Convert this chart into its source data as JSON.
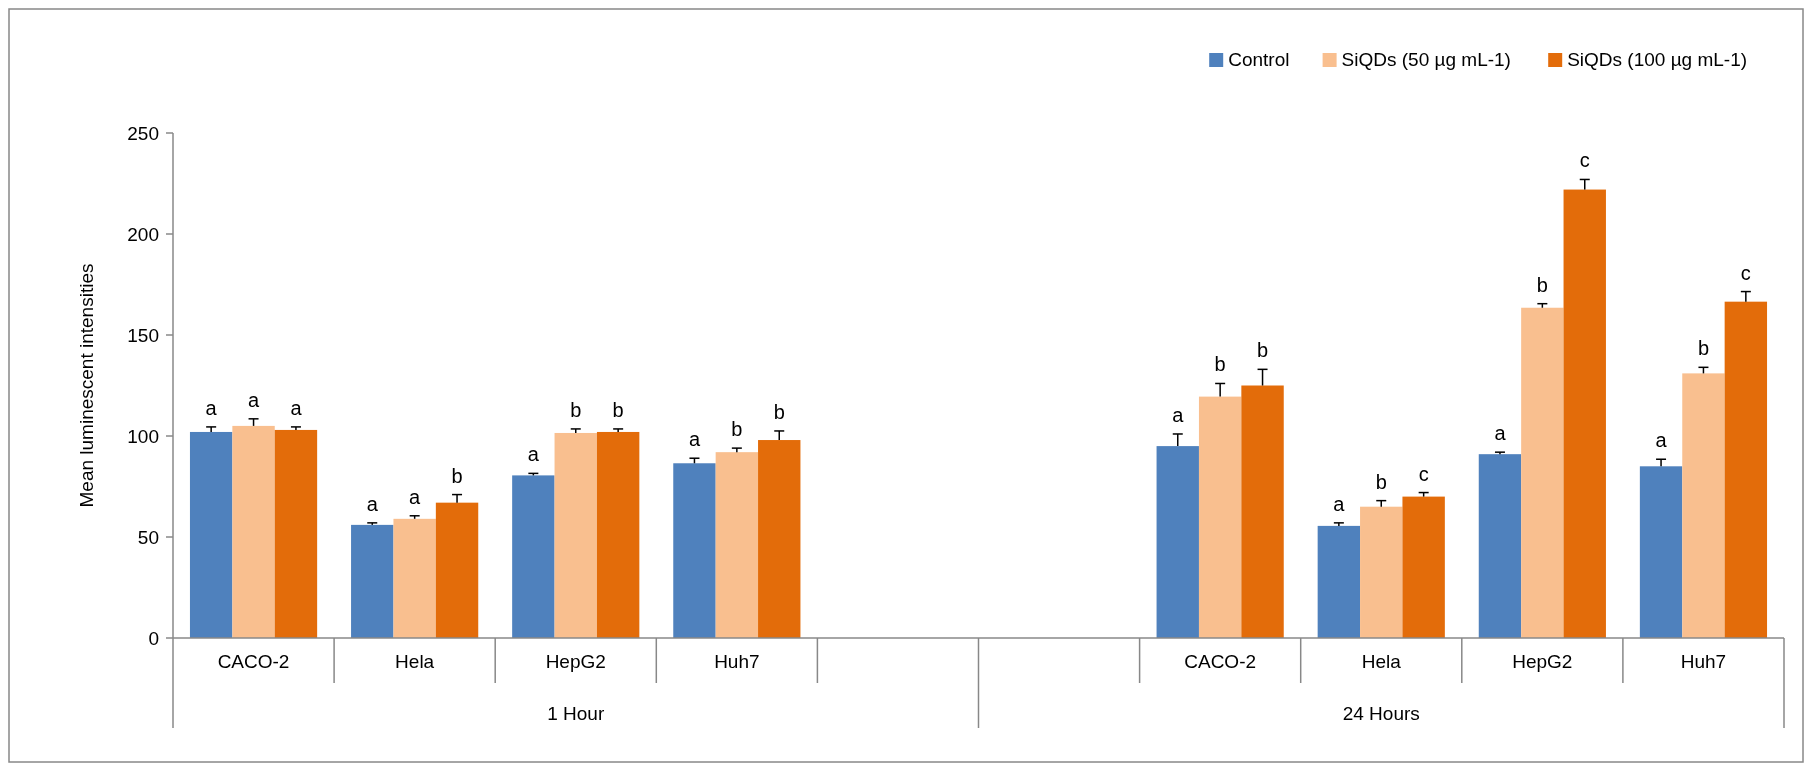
{
  "chart_data": {
    "type": "bar",
    "ylabel": "Mean luminescent intensities",
    "categories": [
      "CACO-2",
      "Hela",
      "HepG2",
      "Huh7",
      null,
      null,
      "CACO-2",
      "Hela",
      "HepG2",
      "Huh7"
    ],
    "series": [
      {
        "name": "Control",
        "color": "#4f81bd",
        "values": [
          102,
          56,
          80.5,
          86.5,
          null,
          null,
          95,
          55.5,
          91,
          85
        ],
        "errors": [
          2.5,
          1,
          1,
          2.5,
          null,
          null,
          6,
          1.5,
          1,
          3.5
        ],
        "value_labels": [
          "a",
          "a",
          "a",
          "a",
          null,
          null,
          "a",
          "a",
          "a",
          "a"
        ]
      },
      {
        "name": "SiQDs (50 µg mL-1)",
        "color": "#f9bf8f",
        "values": [
          105,
          59,
          101.5,
          92,
          null,
          null,
          119.5,
          65,
          163.5,
          131
        ],
        "errors": [
          3.5,
          1.5,
          2,
          2,
          null,
          null,
          6.5,
          3,
          2,
          3
        ],
        "value_labels": [
          "a",
          "a",
          "b",
          "b",
          null,
          null,
          "b",
          "b",
          "b",
          "b"
        ]
      },
      {
        "name": "SiQDs (100 µg mL-1)",
        "color": "#e36c0a",
        "values": [
          103,
          67,
          102,
          98,
          null,
          null,
          125,
          70,
          222,
          166.5
        ],
        "errors": [
          1.5,
          4,
          1.5,
          4.5,
          null,
          null,
          8,
          2,
          5,
          5
        ],
        "value_labels": [
          "a",
          "b",
          "b",
          "b",
          null,
          null,
          "b",
          "c",
          "c",
          "c"
        ]
      }
    ],
    "ylim": [
      0,
      250
    ],
    "yticks": [
      0,
      50,
      100,
      150,
      200,
      250
    ],
    "grid": false,
    "legend": "top right",
    "annotations": [
      "1 Hour",
      "24 Hours"
    ]
  }
}
